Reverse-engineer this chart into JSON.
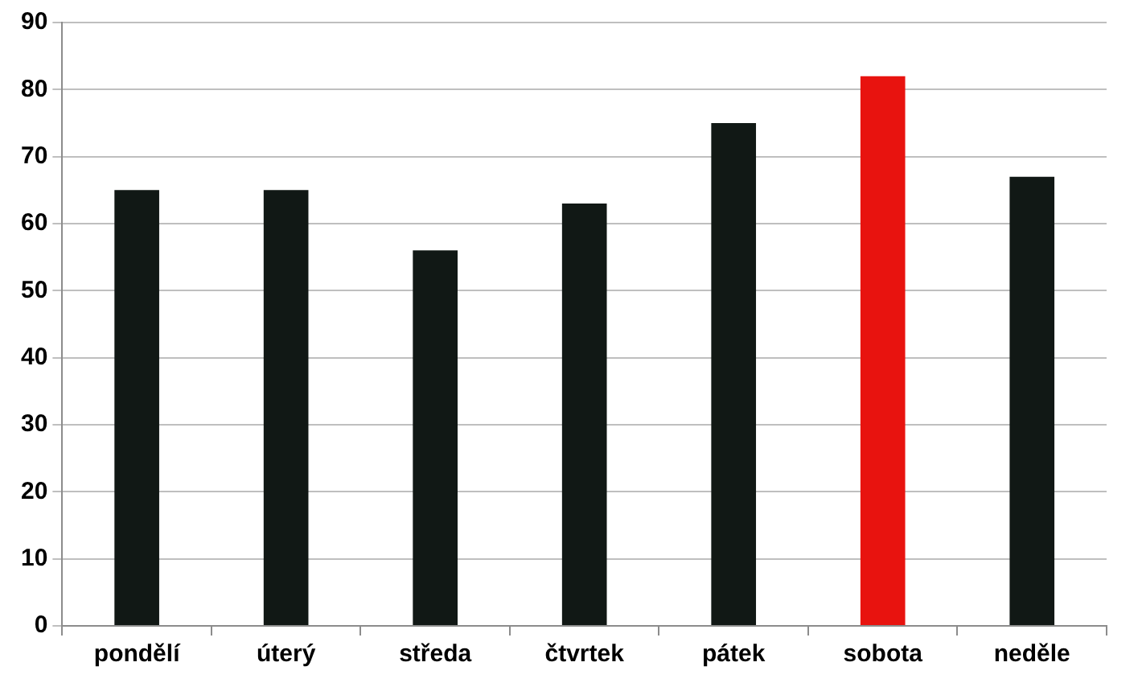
{
  "chart_data": {
    "type": "bar",
    "categories": [
      "pondělí",
      "úterý",
      "středa",
      "čtvrtek",
      "pátek",
      "sobota",
      "neděle"
    ],
    "values": [
      65,
      65,
      56,
      63,
      75,
      82,
      67
    ],
    "colors": [
      "#111815",
      "#111815",
      "#111815",
      "#111815",
      "#111815",
      "#e8130f",
      "#111815"
    ],
    "ylim": [
      0,
      90
    ],
    "yticks": [
      0,
      10,
      20,
      30,
      40,
      50,
      60,
      70,
      80,
      90
    ],
    "grid": "y"
  }
}
